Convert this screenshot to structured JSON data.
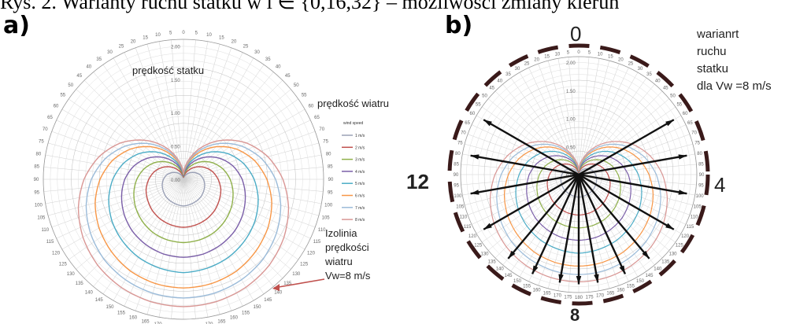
{
  "caption": "Rys. 2. Warianty ruchu statku w i ∈ {0,16,32} – możliwości zmiany kierun",
  "panel_a": {
    "letter": "a)",
    "title": "prędkość statku",
    "wind_title": "prędkość wiatru",
    "isoline_label": [
      "Izolinia",
      "prędkości",
      "wiatru",
      "Vw=8 m/s"
    ],
    "ring_labels": [
      "0.00",
      "0.50",
      "1.00",
      "1.50",
      "2.00"
    ]
  },
  "panel_b": {
    "letter": "b)",
    "dir_top": "0",
    "dir_left": "12",
    "dir_right": "4",
    "dir_bottom": "8",
    "label": [
      "warianrt",
      "ruchu",
      "statku",
      "dla Vw =8 m/s"
    ],
    "ring_labels": [
      "0.00",
      "0.50",
      "1.00",
      "1.50",
      "2.00"
    ]
  },
  "chart_data": [
    {
      "type": "line",
      "subtype": "polar",
      "title": "prędkość statku",
      "angle_ticks_deg": [
        0,
        5,
        10,
        15,
        20,
        25,
        30,
        35,
        40,
        45,
        50,
        55,
        60,
        65,
        70,
        75,
        80,
        85,
        90,
        95,
        100,
        105,
        110,
        115,
        120,
        125,
        130,
        135,
        140,
        145,
        150,
        155,
        160,
        165,
        170,
        175,
        180
      ],
      "radial_ticks": [
        0.0,
        0.5,
        1.0,
        1.5,
        2.0
      ],
      "rlim": [
        0,
        2.1
      ],
      "legend_title": "wind speed",
      "legend_position": "right",
      "angles_deg": [
        0,
        15,
        30,
        45,
        60,
        75,
        90,
        105,
        120,
        135,
        150,
        165,
        180
      ],
      "series": [
        {
          "name": "1 m/s",
          "color": "#9aa0b5",
          "values": [
            0.02,
            0.04,
            0.08,
            0.14,
            0.2,
            0.26,
            0.3,
            0.33,
            0.35,
            0.37,
            0.38,
            0.39,
            0.4
          ]
        },
        {
          "name": "2 m/s",
          "color": "#c0504d",
          "values": [
            0.03,
            0.08,
            0.16,
            0.26,
            0.36,
            0.45,
            0.52,
            0.58,
            0.62,
            0.66,
            0.69,
            0.71,
            0.72
          ]
        },
        {
          "name": "3 m/s",
          "color": "#8fb04a",
          "values": [
            0.04,
            0.12,
            0.24,
            0.37,
            0.5,
            0.61,
            0.7,
            0.77,
            0.83,
            0.88,
            0.92,
            0.94,
            0.95
          ]
        },
        {
          "name": "4 m/s",
          "color": "#7a5ea8",
          "values": [
            0.05,
            0.16,
            0.31,
            0.47,
            0.63,
            0.77,
            0.88,
            0.96,
            1.03,
            1.09,
            1.13,
            1.16,
            1.17
          ]
        },
        {
          "name": "5 m/s",
          "color": "#4bacc6",
          "values": [
            0.06,
            0.2,
            0.38,
            0.58,
            0.77,
            0.93,
            1.06,
            1.16,
            1.24,
            1.3,
            1.35,
            1.38,
            1.4
          ]
        },
        {
          "name": "6 m/s",
          "color": "#f79646",
          "values": [
            0.07,
            0.24,
            0.46,
            0.69,
            0.91,
            1.1,
            1.25,
            1.37,
            1.46,
            1.53,
            1.59,
            1.62,
            1.63
          ]
        },
        {
          "name": "7 m/s",
          "color": "#9bbbd9",
          "values": [
            0.08,
            0.27,
            0.51,
            0.76,
            1.0,
            1.21,
            1.38,
            1.51,
            1.61,
            1.69,
            1.74,
            1.77,
            1.78
          ]
        },
        {
          "name": "8 m/s",
          "color": "#d99694",
          "values": [
            0.09,
            0.3,
            0.56,
            0.83,
            1.09,
            1.31,
            1.49,
            1.63,
            1.74,
            1.82,
            1.87,
            1.9,
            1.91
          ]
        }
      ]
    },
    {
      "type": "line",
      "subtype": "polar",
      "title": "",
      "direction_labels": {
        "0": "0",
        "90": "4",
        "180": "8",
        "270": "12"
      },
      "radial_ticks": [
        0.0,
        0.5,
        1.0,
        1.5,
        2.0
      ],
      "variant_headings_deg": [
        60,
        80,
        100,
        120,
        140,
        155,
        170,
        180,
        190,
        205,
        220,
        240,
        260,
        280,
        300
      ],
      "series_same_as_panel_a": true
    }
  ]
}
